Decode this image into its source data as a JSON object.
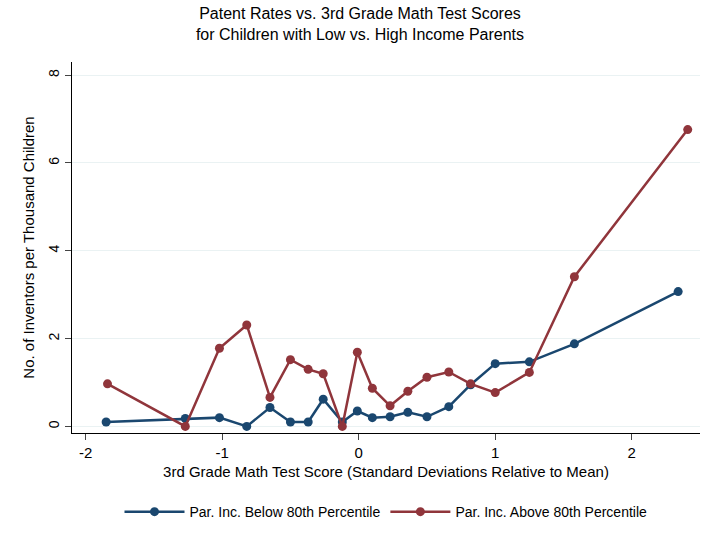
{
  "chart_data": {
    "type": "line",
    "title": "Patent Rates vs. 3rd Grade Math Test Scores\nfor Children with Low vs. High Income Parents",
    "x_label": "3rd Grade Math Test Score (Standard Deviations Relative to Mean)",
    "y_label": "No. of Inventors per Thousand Children",
    "xlim": [
      -2.1,
      2.5
    ],
    "ylim": [
      -0.15,
      8.3
    ],
    "xticks": [
      -2,
      -1,
      0,
      1,
      2
    ],
    "yticks": [
      0,
      2,
      4,
      6,
      8
    ],
    "grid": true,
    "legend": "bottom",
    "series": [
      {
        "name": "Par. Inc. Below 80th Percentile",
        "color": "#1a476f",
        "marker": "circle",
        "x": [
          -1.85,
          -1.27,
          -1.02,
          -0.82,
          -0.65,
          -0.5,
          -0.37,
          -0.26,
          -0.12,
          -0.01,
          0.1,
          0.23,
          0.36,
          0.5,
          0.66,
          0.82,
          1.0,
          1.25,
          1.58,
          2.34
        ],
        "values": [
          0.1,
          0.18,
          0.2,
          0.0,
          0.43,
          0.1,
          0.1,
          0.62,
          0.1,
          0.35,
          0.2,
          0.22,
          0.32,
          0.22,
          0.45,
          0.95,
          1.43,
          1.47,
          1.88,
          3.07
        ]
      },
      {
        "name": "Par. Inc. Above 80th Percentile",
        "color": "#90353b",
        "marker": "circle",
        "x": [
          -1.84,
          -1.27,
          -1.02,
          -0.82,
          -0.65,
          -0.5,
          -0.37,
          -0.26,
          -0.12,
          -0.01,
          0.1,
          0.23,
          0.36,
          0.5,
          0.66,
          0.82,
          1.0,
          1.25,
          1.58,
          2.41
        ],
        "values": [
          0.97,
          0.0,
          1.78,
          2.31,
          0.66,
          1.52,
          1.3,
          1.2,
          0.0,
          1.69,
          0.87,
          0.47,
          0.8,
          1.12,
          1.24,
          0.97,
          0.77,
          1.23,
          3.41,
          6.76
        ]
      }
    ]
  }
}
